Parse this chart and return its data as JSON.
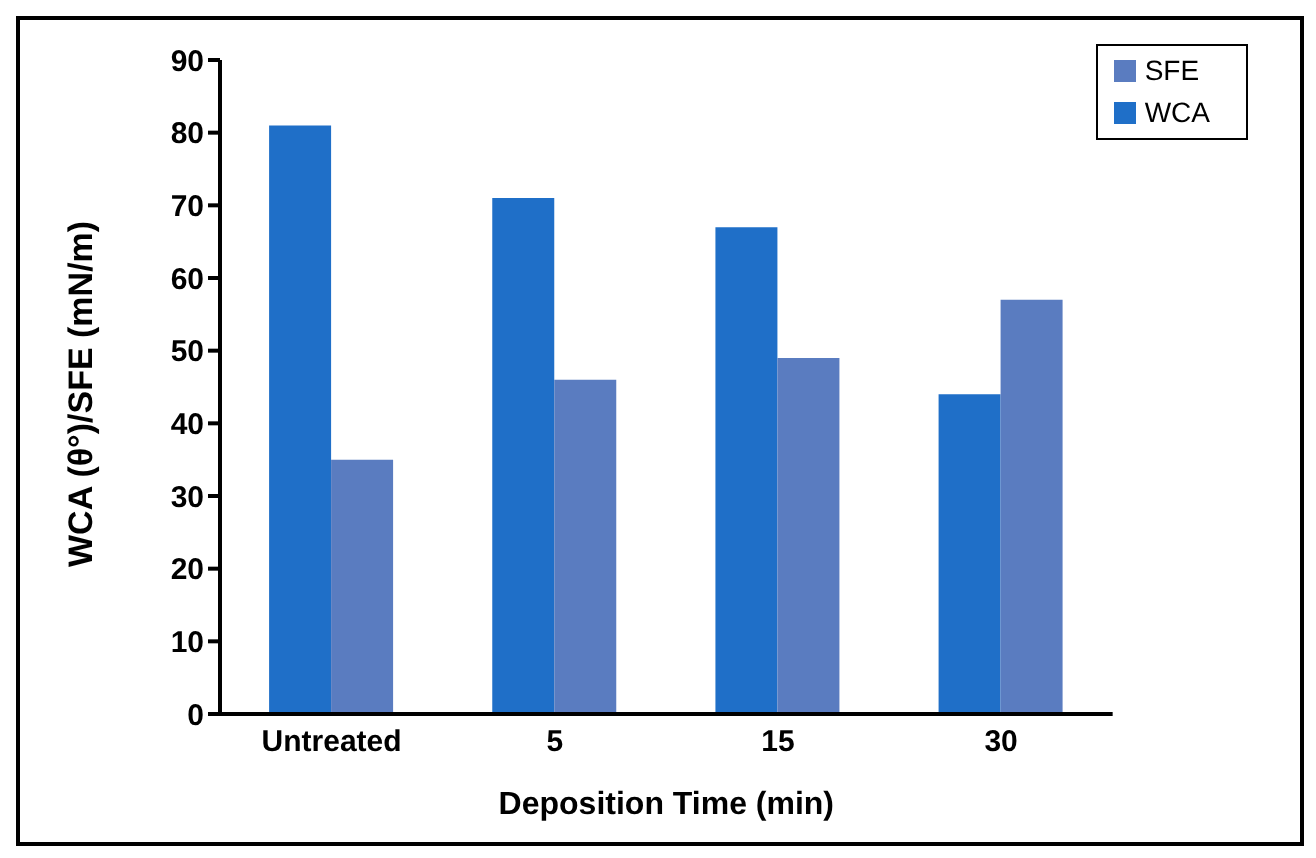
{
  "chart_data": {
    "type": "bar",
    "xlabel": "Deposition Time (min)",
    "ylabel": "WCA (θ°)/SFE (mN/m)",
    "categories": [
      "Untreated",
      "5",
      "15",
      "30"
    ],
    "series": [
      {
        "name": "WCA",
        "color": "#1f6fc8",
        "values": [
          81,
          71,
          67,
          44
        ]
      },
      {
        "name": "SFE",
        "color": "#5a7cc0",
        "values": [
          35,
          46,
          49,
          57
        ]
      }
    ],
    "ylim": [
      0,
      90
    ],
    "yticks": [
      0,
      10,
      20,
      30,
      40,
      50,
      60,
      70,
      80,
      90
    ],
    "grid": false,
    "legend": "top right"
  }
}
